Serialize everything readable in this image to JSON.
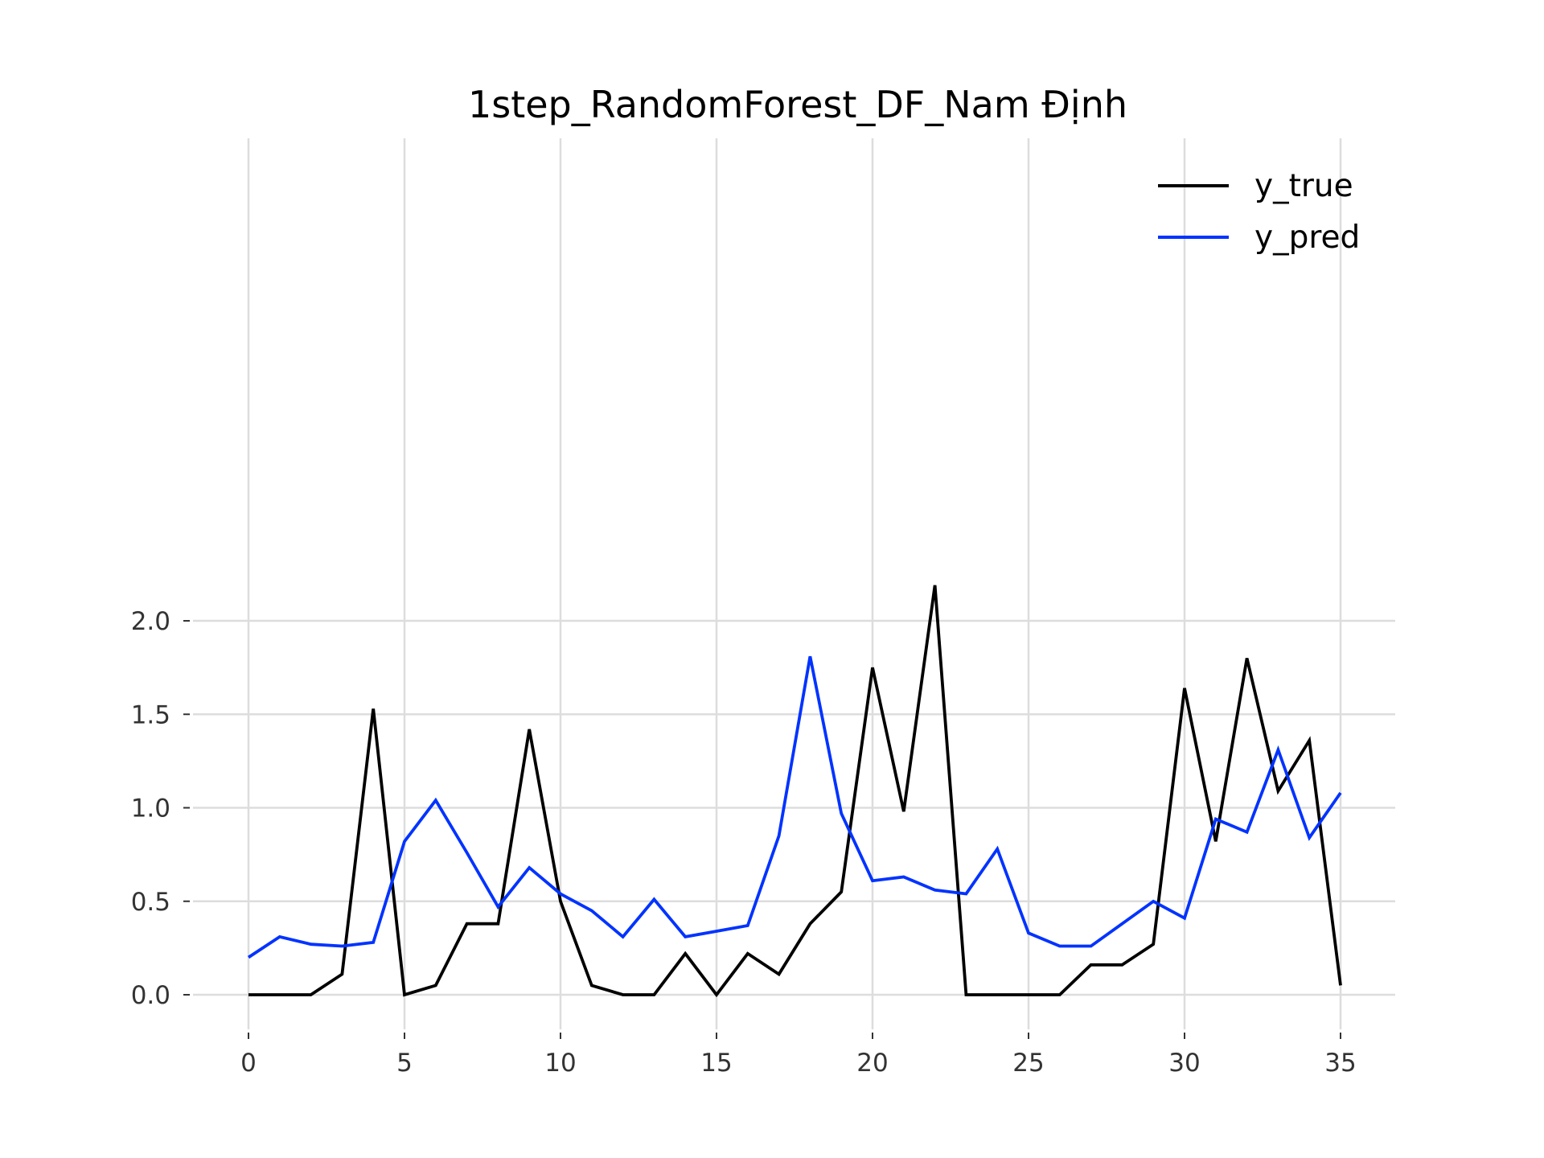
{
  "chart_data": {
    "type": "line",
    "title": "1step_RandomForest_DF_Nam Định",
    "xlabel": "",
    "ylabel": "",
    "xlim": [
      -1.5,
      36.6
    ],
    "ylim": [
      -0.1,
      2.3
    ],
    "x_ticks": [
      0,
      5,
      10,
      15,
      20,
      25,
      30,
      35
    ],
    "x_tick_labels": [
      "0",
      "5",
      "10",
      "15",
      "20",
      "25",
      "30",
      "35"
    ],
    "y_ticks": [
      0.0,
      0.5,
      1.0,
      1.5,
      2.0
    ],
    "y_tick_labels": [
      "0.0",
      "0.5",
      "1.0",
      "1.5",
      "2.0"
    ],
    "grid": true,
    "legend_position": "top-right",
    "x": [
      0,
      1,
      2,
      3,
      4,
      5,
      6,
      7,
      8,
      9,
      10,
      11,
      12,
      13,
      14,
      15,
      16,
      17,
      18,
      19,
      20,
      21,
      22,
      23,
      24,
      25,
      26,
      27,
      28,
      29,
      30,
      31,
      32,
      33,
      34,
      35
    ],
    "series": [
      {
        "name": "y_true",
        "color": "#000000",
        "values": [
          0.0,
          0.0,
          0.0,
          0.11,
          1.53,
          0.0,
          0.05,
          0.38,
          0.38,
          1.42,
          0.5,
          0.05,
          0.0,
          0.0,
          0.22,
          0.0,
          0.22,
          0.11,
          0.38,
          0.55,
          1.75,
          0.98,
          2.19,
          0.0,
          0.0,
          0.0,
          0.0,
          0.16,
          0.16,
          0.27,
          1.64,
          0.82,
          1.8,
          1.09,
          1.36,
          0.05
        ]
      },
      {
        "name": "y_pred",
        "color": "#0033ff",
        "values": [
          0.2,
          0.31,
          0.27,
          0.26,
          0.28,
          0.82,
          1.04,
          0.76,
          0.47,
          0.68,
          0.54,
          0.45,
          0.31,
          0.51,
          0.31,
          0.34,
          0.37,
          0.85,
          1.81,
          0.97,
          0.61,
          0.63,
          0.56,
          0.54,
          0.78,
          0.33,
          0.26,
          0.26,
          0.38,
          0.5,
          0.41,
          0.94,
          0.87,
          1.31,
          0.84,
          1.08
        ]
      }
    ]
  }
}
